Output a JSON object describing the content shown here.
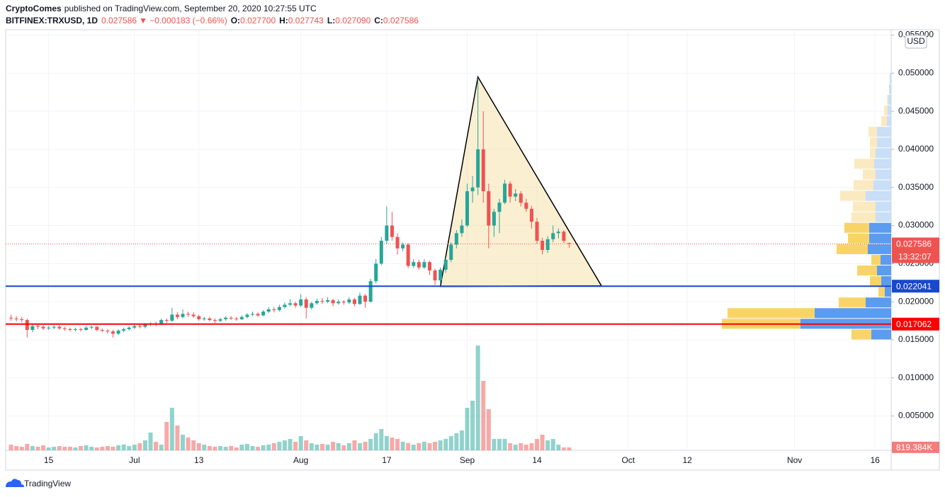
{
  "header": {
    "author": "CryptoComes",
    "published": "published on TradingView.com, September 20, 2020 10:27:55 UTC"
  },
  "footer": {
    "brand": "TradingView"
  },
  "chart_data": {
    "type": "candlestick",
    "legend": {
      "symbol": "BITFINEX:TRXUSD, 1D",
      "change": "▼ −0.000183 (−0.66%)",
      "o_label": "O:",
      "o": "0.027700",
      "h_label": "H:",
      "h": "0.027743",
      "l_label": "L:",
      "l": "0.027090",
      "c_label": "C:",
      "c": "0.027586"
    },
    "currency": "USD",
    "countdown": "13:32:07",
    "volume_last_label": "819.384K",
    "up_color": "#26a69a",
    "down_color": "#ef5350",
    "grid": true,
    "xlim": [
      "06-07",
      "11-19"
    ],
    "xticks": [
      {
        "value": "06-15",
        "label": "15"
      },
      {
        "value": "07-01",
        "label": "Jul"
      },
      {
        "value": "07-13",
        "label": "13"
      },
      {
        "value": "08-01",
        "label": "Aug"
      },
      {
        "value": "08-17",
        "label": "17"
      },
      {
        "value": "09-01",
        "label": "Sep"
      },
      {
        "value": "09-14",
        "label": "14"
      },
      {
        "value": "10-01",
        "label": "Oct"
      },
      {
        "value": "10-12",
        "label": "12"
      },
      {
        "value": "11-01",
        "label": "Nov"
      },
      {
        "value": "11-16",
        "label": "16"
      }
    ],
    "ylim": [
      0.0005,
      0.0557
    ],
    "yticks": [
      {
        "value": 0.005,
        "label": "0.005000"
      },
      {
        "value": 0.01,
        "label": "0.010000"
      },
      {
        "value": 0.015,
        "label": "0.015000"
      },
      {
        "value": 0.02,
        "label": "0.020000"
      },
      {
        "value": 0.025,
        "label": "0.025000"
      },
      {
        "value": 0.03,
        "label": "0.030000"
      },
      {
        "value": 0.035,
        "label": "0.035000"
      },
      {
        "value": 0.04,
        "label": "0.040000"
      },
      {
        "value": 0.045,
        "label": "0.045000"
      },
      {
        "value": 0.05,
        "label": "0.050000"
      },
      {
        "value": 0.055,
        "label": "0.055000"
      }
    ],
    "x": [
      "06-08",
      "06-09",
      "06-10",
      "06-11",
      "06-12",
      "06-13",
      "06-14",
      "06-15",
      "06-16",
      "06-17",
      "06-18",
      "06-19",
      "06-20",
      "06-21",
      "06-22",
      "06-23",
      "06-24",
      "06-25",
      "06-26",
      "06-27",
      "06-28",
      "06-29",
      "06-30",
      "07-01",
      "07-02",
      "07-03",
      "07-04",
      "07-05",
      "07-06",
      "07-07",
      "07-08",
      "07-09",
      "07-10",
      "07-11",
      "07-12",
      "07-13",
      "07-14",
      "07-15",
      "07-16",
      "07-17",
      "07-18",
      "07-19",
      "07-20",
      "07-21",
      "07-22",
      "07-23",
      "07-24",
      "07-25",
      "07-26",
      "07-27",
      "07-28",
      "07-29",
      "07-30",
      "07-31",
      "08-01",
      "08-02",
      "08-03",
      "08-04",
      "08-05",
      "08-06",
      "08-07",
      "08-08",
      "08-09",
      "08-10",
      "08-11",
      "08-12",
      "08-13",
      "08-14",
      "08-15",
      "08-16",
      "08-17",
      "08-18",
      "08-19",
      "08-20",
      "08-21",
      "08-22",
      "08-23",
      "08-24",
      "08-25",
      "08-26",
      "08-27",
      "08-28",
      "08-29",
      "08-30",
      "08-31",
      "09-01",
      "09-02",
      "09-03",
      "09-04",
      "09-05",
      "09-06",
      "09-07",
      "09-08",
      "09-09",
      "09-10",
      "09-11",
      "09-12",
      "09-13",
      "09-14",
      "09-15",
      "09-16",
      "09-17",
      "09-18",
      "09-19",
      "09-20"
    ],
    "open": [
      0.0179,
      0.0178,
      0.0177,
      0.0176,
      0.0163,
      0.0168,
      0.0167,
      0.0165,
      0.0166,
      0.0167,
      0.0165,
      0.0164,
      0.0163,
      0.0164,
      0.0163,
      0.0166,
      0.0167,
      0.0163,
      0.0162,
      0.0161,
      0.0158,
      0.0162,
      0.0164,
      0.0166,
      0.0168,
      0.0167,
      0.017,
      0.0171,
      0.017,
      0.0176,
      0.0175,
      0.0183,
      0.018,
      0.0184,
      0.0183,
      0.0181,
      0.0177,
      0.0178,
      0.0176,
      0.0175,
      0.0177,
      0.0179,
      0.0178,
      0.0177,
      0.018,
      0.0183,
      0.0184,
      0.0182,
      0.0187,
      0.019,
      0.0189,
      0.0193,
      0.0196,
      0.0198,
      0.0195,
      0.0203,
      0.0192,
      0.0198,
      0.0201,
      0.02,
      0.0202,
      0.0198,
      0.02,
      0.0199,
      0.0203,
      0.0197,
      0.0208,
      0.02,
      0.0227,
      0.025,
      0.028,
      0.03,
      0.0285,
      0.027,
      0.0275,
      0.0247,
      0.0252,
      0.0245,
      0.0252,
      0.0241,
      0.0228,
      0.0242,
      0.0255,
      0.0275,
      0.029,
      0.03,
      0.0345,
      0.035,
      0.04,
      0.0345,
      0.03,
      0.0318,
      0.033,
      0.0355,
      0.0338,
      0.0342,
      0.033,
      0.0322,
      0.0305,
      0.028,
      0.0268,
      0.0282,
      0.029,
      0.0292,
      0.0277
    ],
    "high": [
      0.0183,
      0.0181,
      0.018,
      0.0178,
      0.017,
      0.017,
      0.0169,
      0.0168,
      0.0169,
      0.0169,
      0.0167,
      0.0166,
      0.0166,
      0.0166,
      0.0168,
      0.0169,
      0.0168,
      0.0165,
      0.0164,
      0.0163,
      0.0164,
      0.0166,
      0.0168,
      0.017,
      0.017,
      0.0172,
      0.0173,
      0.0174,
      0.0178,
      0.0178,
      0.0192,
      0.0186,
      0.019,
      0.0187,
      0.0186,
      0.0183,
      0.018,
      0.018,
      0.0178,
      0.0179,
      0.0181,
      0.0181,
      0.018,
      0.0182,
      0.0185,
      0.0187,
      0.0186,
      0.0189,
      0.0193,
      0.0193,
      0.0196,
      0.0199,
      0.0203,
      0.02,
      0.021,
      0.0206,
      0.02,
      0.0204,
      0.0205,
      0.0206,
      0.0204,
      0.0203,
      0.0202,
      0.0206,
      0.0205,
      0.0212,
      0.021,
      0.023,
      0.0256,
      0.0285,
      0.0325,
      0.0318,
      0.029,
      0.0278,
      0.0277,
      0.0256,
      0.0255,
      0.0256,
      0.0254,
      0.0243,
      0.0245,
      0.0258,
      0.0278,
      0.0294,
      0.0308,
      0.0355,
      0.0365,
      0.0493,
      0.045,
      0.0355,
      0.0322,
      0.0335,
      0.036,
      0.0358,
      0.0348,
      0.0345,
      0.0335,
      0.0326,
      0.031,
      0.0284,
      0.0286,
      0.03,
      0.0296,
      0.0294,
      0.027743
    ],
    "low": [
      0.0175,
      0.0174,
      0.0173,
      0.0153,
      0.016,
      0.0164,
      0.0163,
      0.0163,
      0.0164,
      0.0163,
      0.0162,
      0.0161,
      0.0161,
      0.0161,
      0.0162,
      0.0164,
      0.0161,
      0.016,
      0.0158,
      0.0153,
      0.0156,
      0.016,
      0.0162,
      0.0164,
      0.0165,
      0.0165,
      0.0168,
      0.0168,
      0.0169,
      0.0172,
      0.0174,
      0.0177,
      0.0178,
      0.018,
      0.0179,
      0.0175,
      0.0175,
      0.0174,
      0.0172,
      0.0173,
      0.0175,
      0.0176,
      0.0175,
      0.0176,
      0.0178,
      0.0181,
      0.018,
      0.0181,
      0.0185,
      0.0186,
      0.0187,
      0.0191,
      0.0194,
      0.0192,
      0.0193,
      0.0178,
      0.019,
      0.0196,
      0.0197,
      0.0198,
      0.0194,
      0.0196,
      0.0196,
      0.0197,
      0.0194,
      0.0196,
      0.0192,
      0.0199,
      0.0224,
      0.0248,
      0.0276,
      0.028,
      0.0262,
      0.0266,
      0.0244,
      0.0244,
      0.0242,
      0.0243,
      0.0235,
      0.0222,
      0.0225,
      0.0238,
      0.0252,
      0.027,
      0.0285,
      0.0298,
      0.033,
      0.034,
      0.033,
      0.027,
      0.0285,
      0.029,
      0.0328,
      0.033,
      0.0332,
      0.0325,
      0.0318,
      0.0296,
      0.0276,
      0.0262,
      0.0264,
      0.0278,
      0.0283,
      0.0277,
      0.02709
    ],
    "close": [
      0.0178,
      0.0177,
      0.0176,
      0.0163,
      0.0168,
      0.0167,
      0.0165,
      0.0166,
      0.0167,
      0.0165,
      0.0164,
      0.0163,
      0.0164,
      0.0163,
      0.0166,
      0.0167,
      0.0163,
      0.0162,
      0.0161,
      0.0158,
      0.0162,
      0.0164,
      0.0166,
      0.0168,
      0.0167,
      0.017,
      0.0171,
      0.017,
      0.0176,
      0.0175,
      0.0183,
      0.018,
      0.0184,
      0.0183,
      0.0181,
      0.0177,
      0.0178,
      0.0176,
      0.0175,
      0.0177,
      0.0179,
      0.0178,
      0.0177,
      0.018,
      0.0183,
      0.0184,
      0.0182,
      0.0187,
      0.019,
      0.0189,
      0.0193,
      0.0196,
      0.0198,
      0.0195,
      0.0203,
      0.0192,
      0.0198,
      0.0201,
      0.02,
      0.0202,
      0.0198,
      0.02,
      0.0199,
      0.0203,
      0.0197,
      0.0208,
      0.02,
      0.0227,
      0.025,
      0.028,
      0.03,
      0.0285,
      0.027,
      0.0275,
      0.0247,
      0.0252,
      0.0245,
      0.0252,
      0.0241,
      0.0228,
      0.0242,
      0.0255,
      0.0275,
      0.029,
      0.03,
      0.0345,
      0.035,
      0.04,
      0.0345,
      0.03,
      0.0318,
      0.033,
      0.0355,
      0.0338,
      0.0342,
      0.033,
      0.0322,
      0.0305,
      0.028,
      0.0268,
      0.0282,
      0.029,
      0.0292,
      0.028,
      0.027586
    ],
    "volume_lim": [
      0,
      40000000
    ],
    "volume": [
      1600000,
      1200000,
      1000000,
      1800000,
      1200000,
      1000000,
      1400000,
      800000,
      1000000,
      1200000,
      1000000,
      1000000,
      800000,
      1200000,
      1400000,
      1000000,
      800000,
      1000000,
      1200000,
      1000000,
      1400000,
      1600000,
      1200000,
      1600000,
      2000000,
      2800000,
      5000000,
      2400000,
      1600000,
      8000000,
      12000000,
      7000000,
      4400000,
      3600000,
      2800000,
      2000000,
      1600000,
      1200000,
      1000000,
      1200000,
      1000000,
      1200000,
      800000,
      1600000,
      1800000,
      1200000,
      1000000,
      1400000,
      1600000,
      2000000,
      2400000,
      2800000,
      3200000,
      2400000,
      4000000,
      2800000,
      2000000,
      1600000,
      1800000,
      1600000,
      2400000,
      2000000,
      1400000,
      2000000,
      2800000,
      2000000,
      2400000,
      3200000,
      4800000,
      6000000,
      4000000,
      3600000,
      3200000,
      2400000,
      2000000,
      1600000,
      2000000,
      2400000,
      2000000,
      2400000,
      2800000,
      3200000,
      4000000,
      4800000,
      5600000,
      12000000,
      14000000,
      29600000,
      19600000,
      11600000,
      3200000,
      3200000,
      3200000,
      2000000,
      1600000,
      2000000,
      1600000,
      2000000,
      3200000,
      4400000,
      2800000,
      3200000,
      1600000,
      800000,
      819384
    ],
    "hlines": [
      {
        "value": 0.022041,
        "color": "#1848cc"
      },
      {
        "value": 0.017062,
        "color": "#ff0000"
      }
    ],
    "triangle": {
      "x": [
        "08-27",
        "09-03",
        "09-26"
      ],
      "y": [
        0.022,
        0.0495,
        0.0221
      ]
    },
    "profile": {
      "bins": [
        0.015,
        0.0164,
        0.0178,
        0.0192,
        0.0206,
        0.022,
        0.0234,
        0.0248,
        0.0262,
        0.0276,
        0.029,
        0.0304,
        0.0318,
        0.0332,
        0.0346,
        0.036,
        0.0374,
        0.0388,
        0.0402,
        0.0416,
        0.043,
        0.0444,
        0.0458,
        0.0472,
        0.0486,
        0.05
      ],
      "up": [
        28,
        128,
        108,
        36,
        9,
        14,
        20,
        15,
        33,
        31,
        31,
        22,
        22,
        36,
        25,
        22,
        24,
        22,
        20,
        20,
        6,
        5,
        4,
        3,
        2
      ],
      "down": [
        28,
        111,
        123,
        38,
        9,
        16,
        28,
        13,
        44,
        30,
        35,
        34,
        32,
        36,
        28,
        18,
        28,
        8,
        10,
        12,
        8,
        5,
        2,
        0,
        0
      ],
      "value_area": [
        0.015,
        0.0304
      ]
    }
  }
}
